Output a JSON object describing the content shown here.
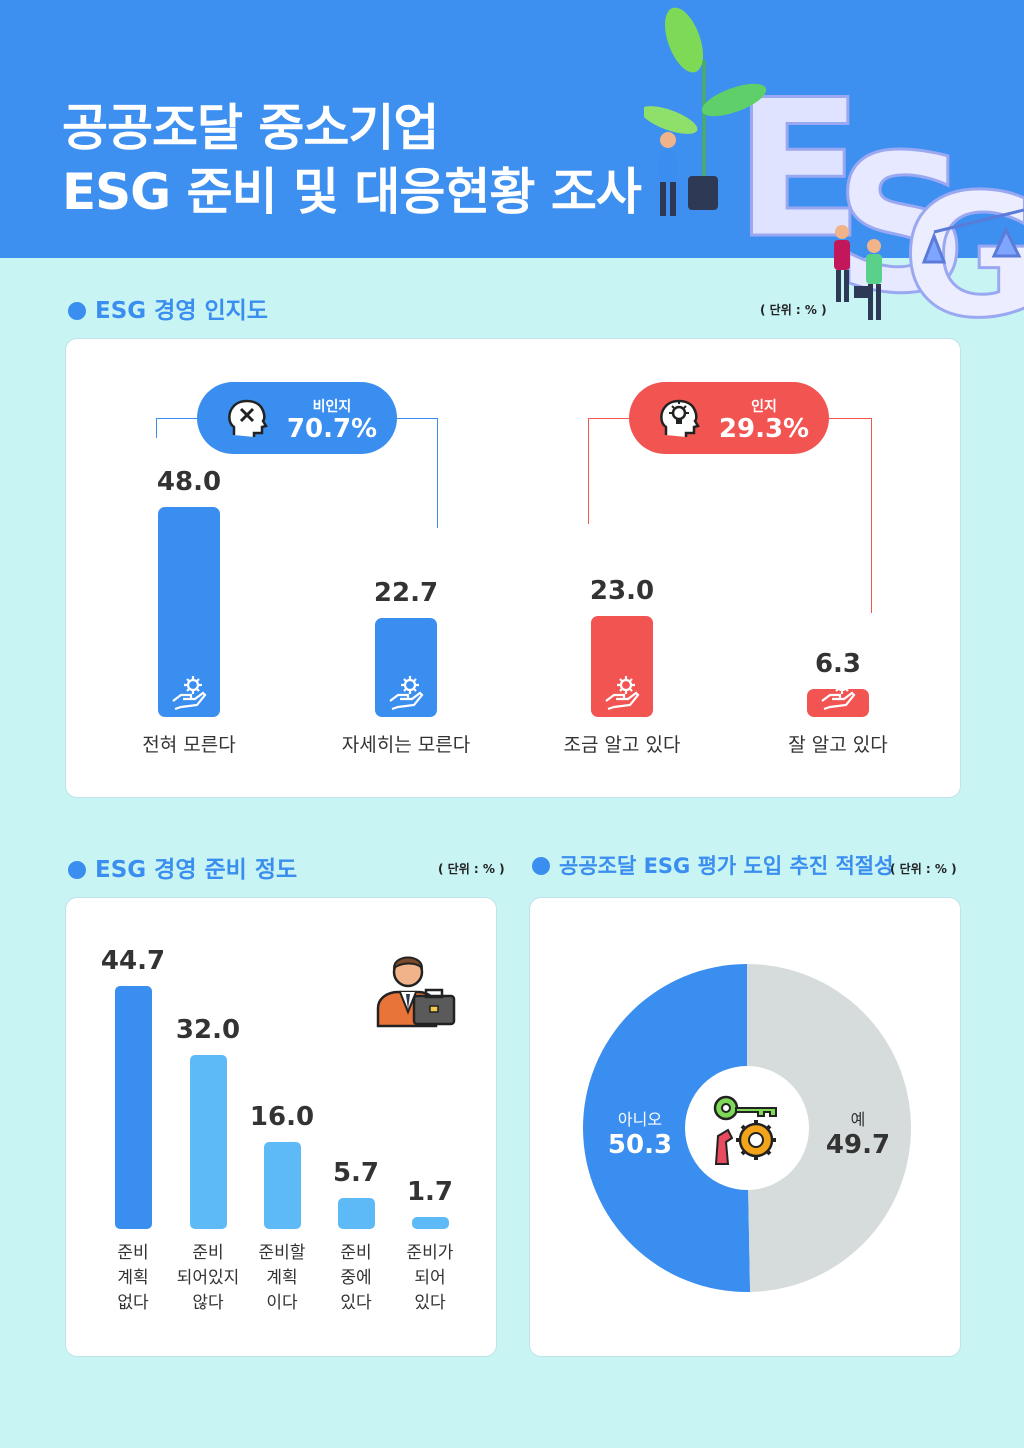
{
  "header": {
    "title_line1": "공공조달 중소기업",
    "title_line2": "ESG 준비 및 대응현황 조사",
    "deco_letters": [
      "E",
      "S",
      "G"
    ]
  },
  "colors": {
    "blue": "#3a8ef0",
    "red": "#f25452",
    "light_blue": "#5ebaf6",
    "gray": "#d6dcdc"
  },
  "awareness": {
    "section_title": "ESG 경영 인지도",
    "unit": "( 단위 : % )",
    "groups": [
      {
        "label": "비인지",
        "value": "70.7%",
        "color": "#3a8ef0",
        "icon": "confused-head-icon"
      },
      {
        "label": "인지",
        "value": "29.3%",
        "color": "#f25452",
        "icon": "idea-head-icon"
      }
    ],
    "chart_data": {
      "type": "bar",
      "categories": [
        "전혀 모른다",
        "자세히는 모른다",
        "조금 알고 있다",
        "잘 알고 있다"
      ],
      "values": [
        48.0,
        22.7,
        23.0,
        6.3
      ],
      "value_labels": [
        "48.0",
        "22.7",
        "23.0",
        "6.3"
      ],
      "colors": [
        "#3a8ef0",
        "#3a8ef0",
        "#f25452",
        "#f25452"
      ],
      "ylim": [
        0,
        48
      ]
    }
  },
  "readiness": {
    "section_title": "ESG 경영 준비 정도",
    "unit": "( 단위 : % )",
    "icon": "businessman-briefcase-icon",
    "chart_data": {
      "type": "bar",
      "categories": [
        [
          "준비",
          "계획",
          "없다"
        ],
        [
          "준비",
          "되어있지",
          "않다"
        ],
        [
          "준비할",
          "계획",
          "이다"
        ],
        [
          "준비",
          "중에",
          "있다"
        ],
        [
          "준비가",
          "되어",
          "있다"
        ]
      ],
      "values": [
        44.7,
        32.0,
        16.0,
        5.7,
        1.7
      ],
      "value_labels": [
        "44.7",
        "32.0",
        "16.0",
        "5.7",
        "1.7"
      ],
      "colors": [
        "#3a8ef0",
        "#5ebaf6",
        "#5ebaf6",
        "#5ebaf6",
        "#5ebaf6"
      ],
      "ylim": [
        0,
        44.7
      ]
    }
  },
  "adequacy": {
    "section_title": "공공조달 ESG 평가 도입 추진 적절성",
    "unit": "( 단위 : % )",
    "icon": "key-gear-hand-icon",
    "chart_data": {
      "type": "pie",
      "labels": [
        "아니오",
        "예"
      ],
      "values": [
        50.3,
        49.7
      ],
      "value_labels": [
        "50.3",
        "49.7"
      ],
      "colors": [
        "#3a8ef0",
        "#d6dcdc"
      ]
    }
  }
}
